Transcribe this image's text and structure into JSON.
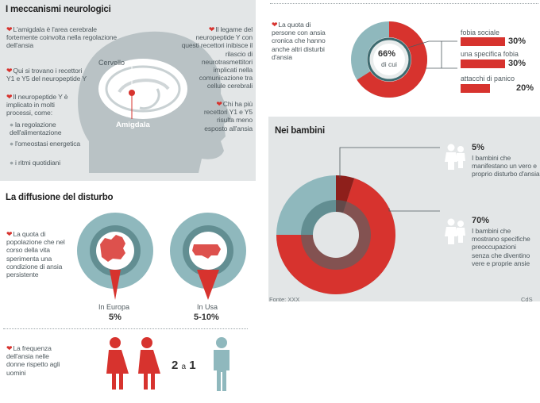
{
  "colors": {
    "accent_red": "#d7332e",
    "dark_red": "#8e1f1b",
    "teal": "#8fb8bd",
    "dark_teal": "#3e6b70",
    "panel_gray": "#e3e6e7",
    "head_gray": "#b9c2c5"
  },
  "mechanisms": {
    "title": "I meccanismi neurologici",
    "left_texts": [
      "L'amigdala è l'area cerebrale fortemente coinvolta nella regolazione dell'ansia",
      "Qui si trovano i recettori Y1 e Y5 del neuropeptide Y",
      "Il neuropeptide Y è implicato in molti processi, come:"
    ],
    "processes": [
      "la regolazione dell'alimentazione",
      "l'omeostasi energetica",
      "i ritmi quotidiani"
    ],
    "right_texts": [
      "Il legame del neuropeptide Y con questi recettori inibisce il rilascio di neurotrasmettitori implicati nella comunicazione tra cellule cerebrali",
      "Chi ha più recettori Y1 e Y5 risulta meno esposto all'ansia"
    ],
    "brain_label": "Cervello",
    "amygdala_label": "Amigdala"
  },
  "chronic": {
    "text": "La quota di persone con ansia cronica che hanno anche altri disturbi d'ansia",
    "center_value": "66%",
    "center_sub": "di cui",
    "share": 0.66,
    "items": [
      {
        "label": "fobia sociale",
        "value": "30%",
        "share": 0.3
      },
      {
        "label": "una specifica fobia",
        "value": "30%",
        "share": 0.3
      },
      {
        "label": "attacchi di panico",
        "value": "20%",
        "share": 0.2
      }
    ]
  },
  "children": {
    "title": "Nei bambini",
    "items": [
      {
        "value": "5%",
        "text": "I bambini che manifestano un vero e proprio disturbo d'ansia",
        "share": 0.05
      },
      {
        "value": "70%",
        "text": "I bambini che mostrano specifiche preoccupazioni senza che diventino vere e proprie ansie",
        "share": 0.7
      }
    ],
    "source": "Fonte: XXX",
    "credit": "CdS"
  },
  "diffusion": {
    "title": "La diffusione del disturbo",
    "text": "La quota di popolazione che nel corso della vita sperimenta una condizione di ansia persistente",
    "regions": [
      {
        "label": "In Europa",
        "value": "5%"
      },
      {
        "label": "In Usa",
        "value": "5-10%"
      }
    ]
  },
  "frequency": {
    "text": "La frequenza dell'ansia nelle donne rispetto agli uomini",
    "ratio_a": "2",
    "ratio_sep": "a",
    "ratio_b": "1"
  }
}
